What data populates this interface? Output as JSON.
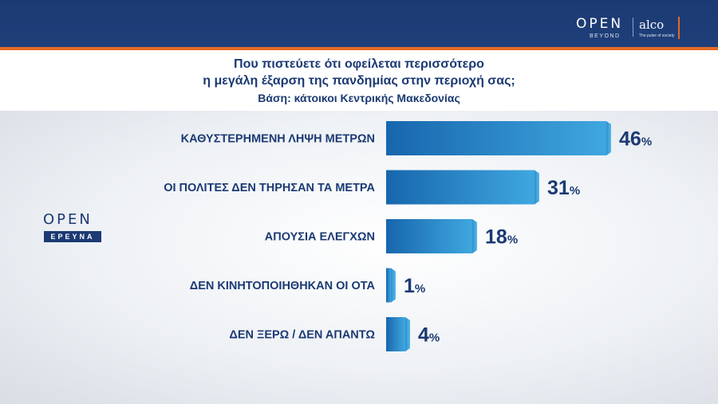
{
  "header": {
    "title_line1": "Που πιστεύετε ότι οφείλεται περισσότερο",
    "title_line2": "η μεγάλη έξαρση της πανδημίας στην περιοχή σας;",
    "subtitle": "Βάση: κάτοικοι Κεντρικής Μακεδονίας"
  },
  "brand": {
    "open": "OPEN",
    "beyond": "BEYOND",
    "alco": "alco",
    "alco_tagline": "The pulse of society",
    "side_open": "OPEN",
    "side_badge": "ΕΡΕΥΝΑ"
  },
  "colors": {
    "navy": "#1b3a73",
    "accent": "#e36a22",
    "bar_dark": "#1766ad",
    "bar_light": "#3fa7df"
  },
  "chart_data": {
    "type": "bar",
    "orientation": "horizontal",
    "title": "Που πιστεύετε ότι οφείλεται περισσότερο η μεγάλη έξαρση της πανδημίας στην περιοχή σας;",
    "subtitle": "Βάση: κάτοικοι Κεντρικής Μακεδονίας",
    "categories": [
      "ΚΑΘΥΣΤΕΡΗΜΕΝΗ ΛΗΨΗ ΜΕΤΡΩΝ",
      "ΟΙ ΠΟΛΙΤΕΣ ΔΕΝ ΤΗΡΗΣΑΝ ΤΑ ΜΕΤΡΑ",
      "ΑΠΟΥΣΙΑ ΕΛΕΓΧΩΝ",
      "ΔΕΝ ΚΙΝΗΤΟΠΟΙΗΘΗΚΑΝ ΟΙ ΟΤΑ",
      "ΔΕΝ ΞΕΡΩ / ΔΕΝ ΑΠΑΝΤΩ"
    ],
    "values": [
      46,
      31,
      18,
      1,
      4
    ],
    "value_suffix": "%",
    "xlim": [
      0,
      46
    ],
    "grid": false,
    "legend": "none"
  }
}
